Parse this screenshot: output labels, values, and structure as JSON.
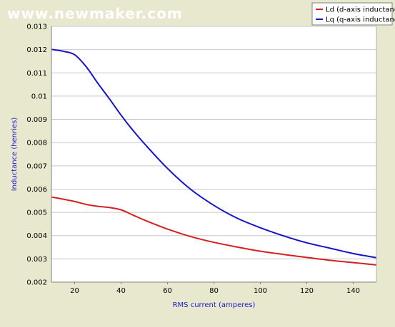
{
  "watermark": "www.newmaker.com",
  "chart_data": {
    "type": "line",
    "xlabel": "RMS current (amperes)",
    "ylabel": "Inductance (henries)",
    "xlim": [
      10,
      150
    ],
    "ylim": [
      0.002,
      0.013
    ],
    "xticks": [
      20,
      40,
      60,
      80,
      100,
      120,
      140
    ],
    "yticks": [
      "0.002",
      "0.003",
      "0.004",
      "0.005",
      "0.006",
      "0.007",
      "0.008",
      "0.009",
      "0.01",
      "0.011",
      "0.012",
      "0.013"
    ],
    "grid": "horizontal",
    "legend_position": "top-right",
    "series": [
      {
        "name": "Ld (d-axis inductance)",
        "color": "#d42020",
        "x": [
          10,
          15,
          20,
          25,
          30,
          35,
          40,
          45,
          50,
          60,
          70,
          80,
          90,
          100,
          110,
          120,
          130,
          140,
          150
        ],
        "y": [
          0.00566,
          0.00557,
          0.00547,
          0.00534,
          0.00526,
          0.00521,
          0.00511,
          0.00489,
          0.00467,
          0.00428,
          0.00396,
          0.00371,
          0.00351,
          0.00333,
          0.00319,
          0.00306,
          0.00294,
          0.00284,
          0.00274
        ]
      },
      {
        "name": "Lq (q-axis inductance)",
        "color": "#1414c8",
        "x": [
          10,
          15,
          20,
          25,
          30,
          35,
          40,
          45,
          50,
          60,
          70,
          80,
          90,
          100,
          110,
          120,
          130,
          140,
          150
        ],
        "y": [
          0.01201,
          0.01193,
          0.01178,
          0.01126,
          0.01055,
          0.00988,
          0.00918,
          0.00854,
          0.00796,
          0.00689,
          0.00599,
          0.0053,
          0.00475,
          0.00434,
          0.00399,
          0.00369,
          0.00346,
          0.00323,
          0.00305
        ]
      }
    ]
  }
}
